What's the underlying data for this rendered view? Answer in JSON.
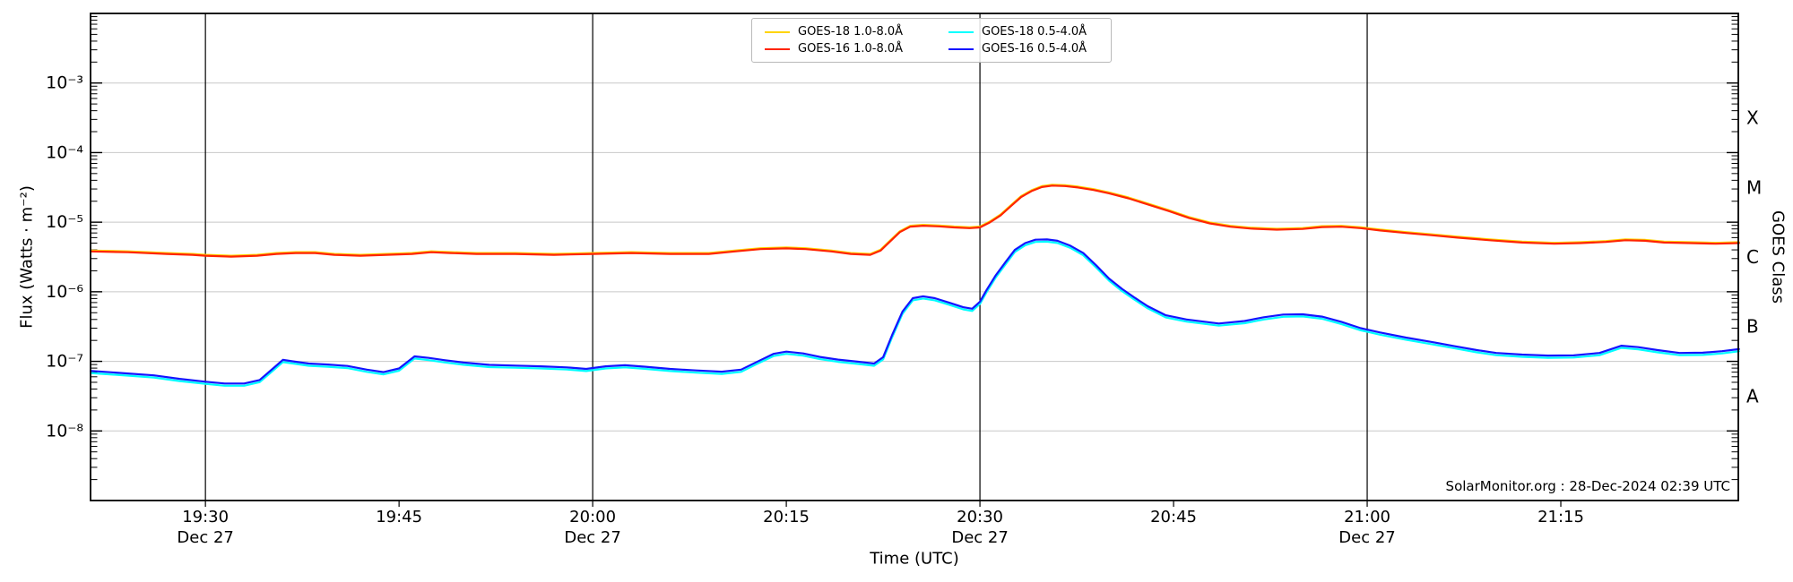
{
  "chart_data": {
    "type": "line",
    "title": "",
    "xlabel": "Time (UTC)",
    "ylabel": "Flux (Watts · m⁻²)",
    "ylabel_right": "GOES Class",
    "watermark": "SolarMonitor.org : 28-Dec-2024 02:39 UTC",
    "grid": "horizontal-decades",
    "legend_position": "top-center",
    "x_axis": {
      "reference_time": "19:30",
      "date": "Dec 27",
      "start_minutes": -8.9,
      "end_minutes": 118.75
    },
    "y_axis": {
      "scale": "log",
      "min": 1e-09,
      "max": 0.01
    },
    "x_ticks": [
      {
        "t": 0,
        "label": "19:30",
        "sublabel": "Dec 27",
        "line": true
      },
      {
        "t": 15,
        "label": "19:45",
        "sublabel": "",
        "line": false
      },
      {
        "t": 30,
        "label": "20:00",
        "sublabel": "Dec 27",
        "line": true
      },
      {
        "t": 45,
        "label": "20:15",
        "sublabel": "",
        "line": false
      },
      {
        "t": 60,
        "label": "20:30",
        "sublabel": "Dec 27",
        "line": true
      },
      {
        "t": 75,
        "label": "20:45",
        "sublabel": "",
        "line": false
      },
      {
        "t": 90,
        "label": "21:00",
        "sublabel": "Dec 27",
        "line": true
      },
      {
        "t": 105,
        "label": "21:15",
        "sublabel": "",
        "line": false
      }
    ],
    "y_ticks": [
      {
        "exp": -3,
        "label": "10⁻³"
      },
      {
        "exp": -4,
        "label": "10⁻⁴"
      },
      {
        "exp": -5,
        "label": "10⁻⁵"
      },
      {
        "exp": -6,
        "label": "10⁻⁶"
      },
      {
        "exp": -7,
        "label": "10⁻⁷"
      },
      {
        "exp": -8,
        "label": "10⁻⁸"
      }
    ],
    "goes_classes": [
      {
        "label": "X",
        "exp_center": -3.5
      },
      {
        "label": "M",
        "exp_center": -4.5
      },
      {
        "label": "C",
        "exp_center": -5.5
      },
      {
        "label": "B",
        "exp_center": -6.5
      },
      {
        "label": "A",
        "exp_center": -7.5
      }
    ],
    "legend": [
      {
        "label": "GOES-18 1.0-8.0Å",
        "color": "#FFD400"
      },
      {
        "label": "GOES-16 1.0-8.0Å",
        "color": "#FF2400"
      },
      {
        "label": "GOES-18 0.5-4.0Å",
        "color": "#00FFFF"
      },
      {
        "label": "GOES-16 0.5-4.0Å",
        "color": "#1414FF"
      }
    ],
    "series": [
      {
        "name": "GOES-18 1.0-8.0Å",
        "color": "#FFD400",
        "width": 2.2,
        "points_follow": {
          "series": "GOES-16 1.0-8.0Å",
          "ratio": 1.03
        }
      },
      {
        "name": "GOES-16 1.0-8.0Å",
        "color": "#FF2400",
        "width": 2.2,
        "points": [
          [
            -8.9,
            3.8e-06
          ],
          [
            -6,
            3.7e-06
          ],
          [
            -3,
            3.5e-06
          ],
          [
            -1,
            3.4e-06
          ],
          [
            0,
            3.3e-06
          ],
          [
            2,
            3.2e-06
          ],
          [
            4,
            3.3e-06
          ],
          [
            5.5,
            3.5e-06
          ],
          [
            7,
            3.6e-06
          ],
          [
            8.5,
            3.6e-06
          ],
          [
            10,
            3.4e-06
          ],
          [
            12,
            3.3e-06
          ],
          [
            14,
            3.4e-06
          ],
          [
            16,
            3.5e-06
          ],
          [
            17.5,
            3.7e-06
          ],
          [
            19,
            3.6e-06
          ],
          [
            21,
            3.5e-06
          ],
          [
            24,
            3.5e-06
          ],
          [
            27,
            3.4e-06
          ],
          [
            30,
            3.5e-06
          ],
          [
            33,
            3.6e-06
          ],
          [
            36,
            3.5e-06
          ],
          [
            39,
            3.5e-06
          ],
          [
            41,
            3.8e-06
          ],
          [
            43,
            4.1e-06
          ],
          [
            45,
            4.2e-06
          ],
          [
            46.5,
            4.1e-06
          ],
          [
            48.5,
            3.8e-06
          ],
          [
            50,
            3.5e-06
          ],
          [
            51.5,
            3.4e-06
          ],
          [
            52.3,
            3.9e-06
          ],
          [
            53,
            5.2e-06
          ],
          [
            53.8,
            7.2e-06
          ],
          [
            54.6,
            8.6e-06
          ],
          [
            55.6,
            8.9e-06
          ],
          [
            56.8,
            8.7e-06
          ],
          [
            58,
            8.4e-06
          ],
          [
            59.2,
            8.2e-06
          ],
          [
            60,
            8.4e-06
          ],
          [
            60.8,
            1e-05
          ],
          [
            61.6,
            1.25e-05
          ],
          [
            62.4,
            1.7e-05
          ],
          [
            63.2,
            2.3e-05
          ],
          [
            64,
            2.8e-05
          ],
          [
            64.8,
            3.2e-05
          ],
          [
            65.6,
            3.35e-05
          ],
          [
            66.6,
            3.3e-05
          ],
          [
            67.6,
            3.15e-05
          ],
          [
            68.8,
            2.9e-05
          ],
          [
            70,
            2.6e-05
          ],
          [
            71.5,
            2.2e-05
          ],
          [
            73,
            1.8e-05
          ],
          [
            74.6,
            1.45e-05
          ],
          [
            76.2,
            1.15e-05
          ],
          [
            77.8,
            9.6e-06
          ],
          [
            79.4,
            8.6e-06
          ],
          [
            81,
            8.1e-06
          ],
          [
            83,
            7.8e-06
          ],
          [
            85,
            8e-06
          ],
          [
            86.5,
            8.5e-06
          ],
          [
            88,
            8.6e-06
          ],
          [
            89.5,
            8.2e-06
          ],
          [
            91,
            7.6e-06
          ],
          [
            93,
            7e-06
          ],
          [
            95,
            6.5e-06
          ],
          [
            97,
            6e-06
          ],
          [
            99.5,
            5.5e-06
          ],
          [
            102,
            5.1e-06
          ],
          [
            104.5,
            4.9e-06
          ],
          [
            106.5,
            5e-06
          ],
          [
            108.5,
            5.2e-06
          ],
          [
            110,
            5.5e-06
          ],
          [
            111.5,
            5.4e-06
          ],
          [
            113,
            5.1e-06
          ],
          [
            115,
            5e-06
          ],
          [
            117,
            4.9e-06
          ],
          [
            118.8,
            5e-06
          ]
        ]
      },
      {
        "name": "GOES-18 0.5-4.0Å",
        "color": "#00FFFF",
        "width": 2.2,
        "points_follow": {
          "series": "GOES-16 0.5-4.0Å",
          "ratio": 0.93
        }
      },
      {
        "name": "GOES-16 0.5-4.0Å",
        "color": "#1414FF",
        "width": 2.2,
        "points": [
          [
            -8.9,
            7.3e-08
          ],
          [
            -6.5,
            6.8e-08
          ],
          [
            -4,
            6.3e-08
          ],
          [
            -2,
            5.6e-08
          ],
          [
            0,
            5.1e-08
          ],
          [
            1.5,
            4.8e-08
          ],
          [
            3,
            4.8e-08
          ],
          [
            4.2,
            5.4e-08
          ],
          [
            5.2,
            7.8e-08
          ],
          [
            6,
            1.05e-07
          ],
          [
            6.8,
            1e-07
          ],
          [
            8,
            9.3e-08
          ],
          [
            9.5,
            9e-08
          ],
          [
            11,
            8.6e-08
          ],
          [
            12.5,
            7.6e-08
          ],
          [
            13.8,
            7e-08
          ],
          [
            15,
            7.9e-08
          ],
          [
            16.2,
            1.18e-07
          ],
          [
            17.3,
            1.12e-07
          ],
          [
            18.5,
            1.04e-07
          ],
          [
            20,
            9.6e-08
          ],
          [
            22,
            8.9e-08
          ],
          [
            24,
            8.7e-08
          ],
          [
            26,
            8.5e-08
          ],
          [
            28,
            8.2e-08
          ],
          [
            29.5,
            7.8e-08
          ],
          [
            31,
            8.5e-08
          ],
          [
            32.5,
            8.8e-08
          ],
          [
            34,
            8.4e-08
          ],
          [
            36,
            7.8e-08
          ],
          [
            38,
            7.4e-08
          ],
          [
            40,
            7.1e-08
          ],
          [
            41.5,
            7.6e-08
          ],
          [
            42.7,
            9.8e-08
          ],
          [
            44,
            1.28e-07
          ],
          [
            45,
            1.38e-07
          ],
          [
            46.3,
            1.3e-07
          ],
          [
            47.6,
            1.16e-07
          ],
          [
            49,
            1.06e-07
          ],
          [
            50.5,
            9.9e-08
          ],
          [
            51.8,
            9.3e-08
          ],
          [
            52.5,
            1.15e-07
          ],
          [
            53.2,
            2.4e-07
          ],
          [
            54,
            5.2e-07
          ],
          [
            54.8,
            8.1e-07
          ],
          [
            55.6,
            8.6e-07
          ],
          [
            56.5,
            8.1e-07
          ],
          [
            57.6,
            7e-07
          ],
          [
            58.7,
            6e-07
          ],
          [
            59.4,
            5.7e-07
          ],
          [
            60,
            7.2e-07
          ],
          [
            60.5,
            1.05e-06
          ],
          [
            61.2,
            1.7e-06
          ],
          [
            62,
            2.7e-06
          ],
          [
            62.7,
            4e-06
          ],
          [
            63.5,
            5e-06
          ],
          [
            64.3,
            5.6e-06
          ],
          [
            65.2,
            5.65e-06
          ],
          [
            66,
            5.4e-06
          ],
          [
            67,
            4.6e-06
          ],
          [
            68,
            3.6e-06
          ],
          [
            69,
            2.4e-06
          ],
          [
            70,
            1.55e-06
          ],
          [
            71,
            1.1e-06
          ],
          [
            72,
            8.2e-07
          ],
          [
            73,
            6.2e-07
          ],
          [
            74.4,
            4.6e-07
          ],
          [
            76,
            4e-07
          ],
          [
            78.5,
            3.5e-07
          ],
          [
            80.5,
            3.8e-07
          ],
          [
            82,
            4.3e-07
          ],
          [
            83.5,
            4.7e-07
          ],
          [
            85,
            4.75e-07
          ],
          [
            86.5,
            4.4e-07
          ],
          [
            88,
            3.7e-07
          ],
          [
            89.5,
            3e-07
          ],
          [
            91,
            2.6e-07
          ],
          [
            93,
            2.2e-07
          ],
          [
            95,
            1.9e-07
          ],
          [
            96.8,
            1.65e-07
          ],
          [
            98.5,
            1.45e-07
          ],
          [
            100,
            1.32e-07
          ],
          [
            102,
            1.25e-07
          ],
          [
            104,
            1.21e-07
          ],
          [
            106,
            1.22e-07
          ],
          [
            108,
            1.32e-07
          ],
          [
            109.7,
            1.68e-07
          ],
          [
            111,
            1.6e-07
          ],
          [
            112.5,
            1.45e-07
          ],
          [
            114.2,
            1.32e-07
          ],
          [
            116,
            1.33e-07
          ],
          [
            117.5,
            1.4e-07
          ],
          [
            118.8,
            1.5e-07
          ]
        ]
      }
    ],
    "style": {
      "frame_color": "#000000",
      "grid_color": "#c8c8c8",
      "timeline_color": "#000000",
      "background": "#ffffff"
    }
  }
}
